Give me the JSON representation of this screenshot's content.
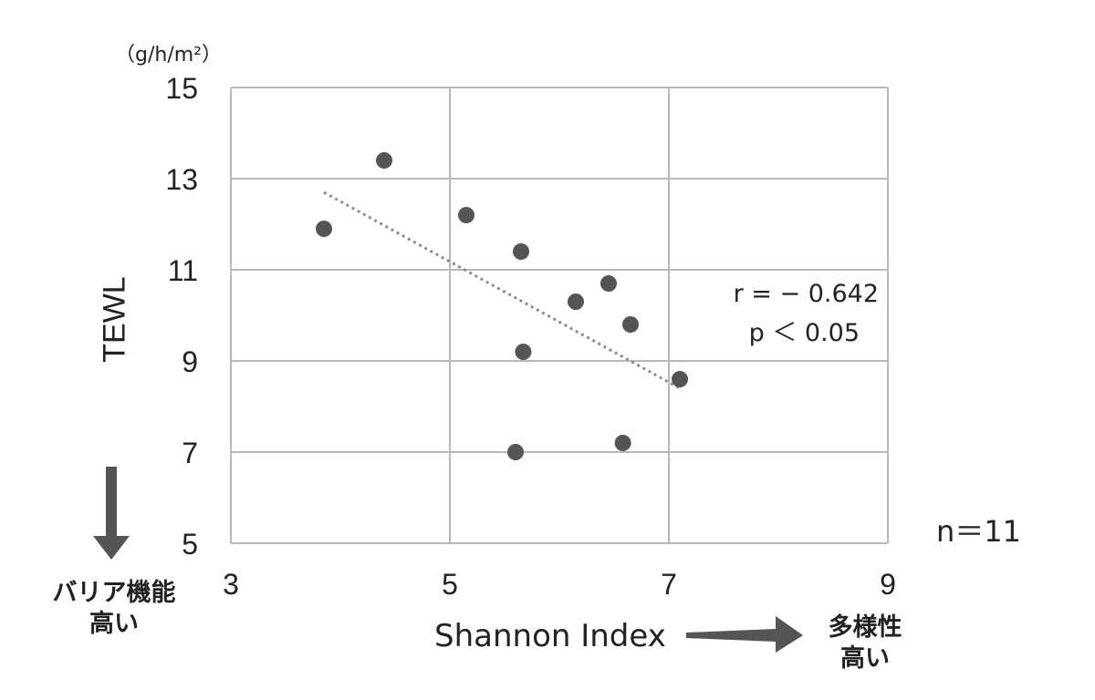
{
  "chart_data": {
    "type": "scatter",
    "ylabel": "TEWL",
    "xlabel": "Shannon Index",
    "y_unit": "（g/h/m²）",
    "xlim": [
      3,
      9
    ],
    "ylim": [
      5,
      15
    ],
    "x_ticks": [
      "3",
      "5",
      "7",
      "9"
    ],
    "y_ticks": [
      "5",
      "7",
      "9",
      "11",
      "13",
      "15"
    ],
    "grid": true,
    "points": [
      {
        "x": 3.85,
        "y": 11.9
      },
      {
        "x": 4.4,
        "y": 13.4
      },
      {
        "x": 5.15,
        "y": 12.2
      },
      {
        "x": 5.65,
        "y": 11.4
      },
      {
        "x": 6.15,
        "y": 10.3
      },
      {
        "x": 6.45,
        "y": 10.7
      },
      {
        "x": 6.65,
        "y": 9.8
      },
      {
        "x": 5.67,
        "y": 9.2
      },
      {
        "x": 7.1,
        "y": 8.6
      },
      {
        "x": 5.6,
        "y": 7.0
      },
      {
        "x": 6.58,
        "y": 7.2
      }
    ],
    "trendline": {
      "x1": 3.85,
      "y1": 12.7,
      "x2": 7.1,
      "y2": 8.4,
      "style": "dotted"
    },
    "annotations": {
      "r": "r = − 0.642",
      "p": "p ＜ 0.05",
      "n": "n＝11"
    },
    "notes": {
      "left_line1": "バリア機能",
      "left_line2": "高い",
      "right_line1": "多様性",
      "right_line2": "高い"
    },
    "colors": {
      "point": "#555555",
      "grid": "#b8b8b8",
      "trend": "#8c8c8c",
      "arrow": "#555555"
    }
  }
}
